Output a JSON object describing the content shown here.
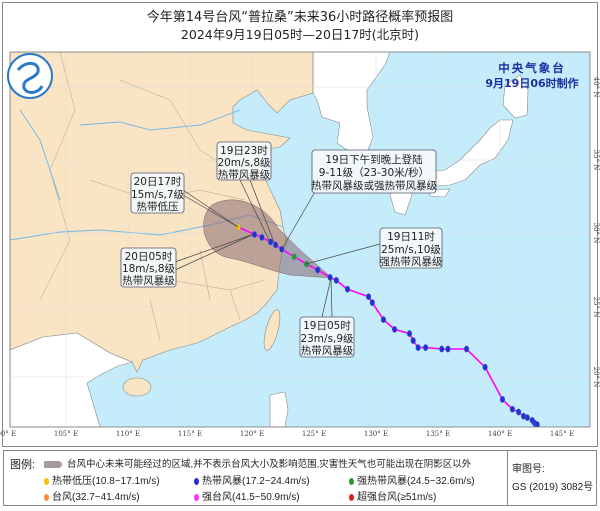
{
  "header": {
    "title": "今年第14号台风“普拉桑”未来36小时路径概率预报图",
    "subtitle": "2024年9月19日05时—20日17时(北京时)"
  },
  "agency": {
    "name": "中央气象台",
    "made": "9月19日06时制作",
    "color": "#1a2fa0"
  },
  "map": {
    "lon_ticks": [
      "100° E",
      "105° E",
      "110° E",
      "115° E",
      "120° E",
      "125° E",
      "130° E",
      "135° E",
      "140° E",
      "145° E"
    ],
    "lat_ticks": [
      "40° N",
      "35° N",
      "30° N",
      "25° N",
      "20° N"
    ],
    "colors": {
      "land": "#f9e4c3",
      "foreign_land": "#ffffff",
      "sea": "#c4ecfb",
      "track": "#ff00ff",
      "cone": "#8a6a72"
    }
  },
  "grade_colors": {
    "TD": "#f5c400",
    "TS": "#2233cc",
    "STS": "#2a9a2a",
    "TY": "#ff8c3a",
    "STY": "#ff33ff",
    "SuperTY": "#e02020"
  },
  "track": {
    "forecast": [
      {
        "lon": 126.3,
        "lat": 27.0,
        "grade": "TS"
      },
      {
        "lon": 125.3,
        "lat": 27.5,
        "grade": "TS"
      },
      {
        "lon": 124.4,
        "lat": 27.9,
        "grade": "STS"
      },
      {
        "lon": 123.4,
        "lat": 28.4,
        "grade": "STS"
      },
      {
        "lon": 122.4,
        "lat": 28.9,
        "grade": "TS"
      },
      {
        "lon": 121.9,
        "lat": 29.2,
        "grade": "TS"
      },
      {
        "lon": 121.5,
        "lat": 29.4,
        "grade": "TS"
      },
      {
        "lon": 120.8,
        "lat": 29.7,
        "grade": "TS"
      },
      {
        "lon": 120.2,
        "lat": 29.9,
        "grade": "TS"
      },
      {
        "lon": 118.9,
        "lat": 30.4,
        "grade": "TD"
      }
    ],
    "past": [
      {
        "lon": 126.3,
        "lat": 27.0,
        "grade": "TS"
      },
      {
        "lon": 126.8,
        "lat": 26.8,
        "grade": "TS"
      },
      {
        "lon": 127.7,
        "lat": 26.2,
        "grade": "TS"
      },
      {
        "lon": 129.4,
        "lat": 25.7,
        "grade": "TS"
      },
      {
        "lon": 129.7,
        "lat": 25.3,
        "grade": "TS"
      },
      {
        "lon": 130.6,
        "lat": 24.1,
        "grade": "TS"
      },
      {
        "lon": 131.5,
        "lat": 23.4,
        "grade": "TS"
      },
      {
        "lon": 132.7,
        "lat": 23.1,
        "grade": "TS"
      },
      {
        "lon": 133.0,
        "lat": 22.6,
        "grade": "TS"
      },
      {
        "lon": 133.4,
        "lat": 22.1,
        "grade": "TS"
      },
      {
        "lon": 134.0,
        "lat": 22.1,
        "grade": "TS"
      },
      {
        "lon": 135.3,
        "lat": 22.0,
        "grade": "TS"
      },
      {
        "lon": 135.8,
        "lat": 22.0,
        "grade": "TS"
      },
      {
        "lon": 137.3,
        "lat": 22.0,
        "grade": "TS"
      },
      {
        "lon": 138.8,
        "lat": 20.7,
        "grade": "TS"
      },
      {
        "lon": 140.2,
        "lat": 18.4,
        "grade": "TS"
      },
      {
        "lon": 141.0,
        "lat": 17.7,
        "grade": "TS"
      },
      {
        "lon": 141.5,
        "lat": 17.5,
        "grade": "TS"
      },
      {
        "lon": 141.9,
        "lat": 17.2,
        "grade": "TS"
      },
      {
        "lon": 142.2,
        "lat": 17.1,
        "grade": "TS"
      },
      {
        "lon": 142.6,
        "lat": 16.9,
        "grade": "TS"
      },
      {
        "lon": 142.8,
        "lat": 16.7,
        "grade": "TS"
      },
      {
        "lon": 143.0,
        "lat": 16.6,
        "grade": "TS"
      }
    ]
  },
  "annotations": {
    "t19_23": [
      "19日23时",
      "20m/s,8级",
      "热带风暴级"
    ],
    "t20_17": [
      "20日17时",
      "15m/s,7级",
      "热带低压"
    ],
    "t20_05": [
      "20日05时",
      "18m/s,8级",
      "热带风暴级"
    ],
    "landfall": [
      "19日下午到晚上登陆",
      "9-11级（23-30米/秒）",
      "热带风暴级或强热带风暴级"
    ],
    "t19_11": [
      "19日11时",
      "25m/s,10级",
      "强热带风暴级"
    ],
    "t19_05": [
      "19日05时",
      "23m/s,9级",
      "热带风暴级"
    ]
  },
  "legend": {
    "label": "图例:",
    "cone_desc": "台风中心未来可能经过的区域,并不表示台风大小及影响范围,灾害性天气也可能出现在阴影区以外",
    "items": [
      {
        "label": "热带低压(10.8~17.1m/s)",
        "color": "#f5c400"
      },
      {
        "label": "热带风暴(17.2~24.4m/s)",
        "color": "#2233cc"
      },
      {
        "label": "强热带风暴(24.5~32.6m/s)",
        "color": "#2a9a2a"
      },
      {
        "label": "台风(32.7~41.4m/s)",
        "color": "#ff8c3a"
      },
      {
        "label": "强台风(41.5~50.9m/s)",
        "color": "#ff33ff"
      },
      {
        "label": "超强台风(≥51m/s)",
        "color": "#e02020"
      }
    ]
  },
  "approval": {
    "label": "审图号:",
    "code": "GS (2019) 3082号"
  }
}
